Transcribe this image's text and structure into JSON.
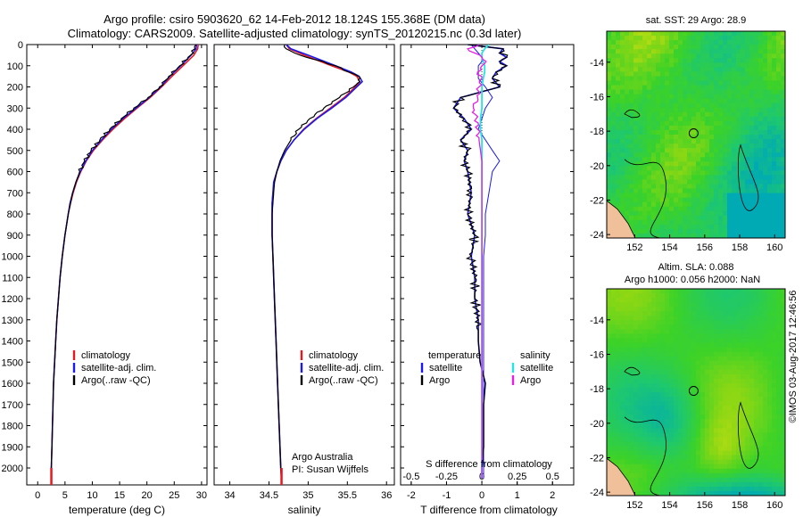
{
  "title": {
    "line1": "Argo profile: csiro 5903620_62 14-Feb-2012 18.124S 155.368E (DM data)",
    "line2": "Climatology: CARS2009. Satellite-adjusted climatology: synTS_20120215.nc (0.3d later)"
  },
  "footer": {
    "stamp": "©IMOS 03-Aug-2017 12:46:56"
  },
  "colors": {
    "climatology": "#e8161d",
    "satellite": "#1a1aee",
    "argo": "#000000",
    "salinity_sat": "#22e6e6",
    "salinity_argo": "#e61ee6",
    "land": "#f0c09a"
  },
  "chart_data": [
    {
      "id": "temperature",
      "type": "line",
      "xlabel": "temperature (deg C)",
      "xlim": [
        -2,
        31
      ],
      "xticks": [
        "0",
        "5",
        "10",
        "15",
        "20",
        "25",
        "30"
      ],
      "ylim": [
        0,
        2080
      ],
      "yticks": [
        "0",
        "100",
        "200",
        "300",
        "400",
        "500",
        "600",
        "700",
        "800",
        "900",
        "1000",
        "1100",
        "1200",
        "1300",
        "1400",
        "1500",
        "1600",
        "1700",
        "1800",
        "1900",
        "2000"
      ],
      "legend": [
        "climatology",
        "satellite-adj. clim.",
        "Argo(..raw -QC)"
      ],
      "depth": [
        0,
        20,
        50,
        100,
        150,
        200,
        250,
        300,
        350,
        400,
        450,
        500,
        550,
        600,
        650,
        700,
        750,
        800,
        900,
        1000,
        1100,
        1200,
        1300,
        1400,
        1500,
        1600,
        1700,
        1800,
        1900,
        2000,
        2050
      ],
      "series": [
        {
          "name": "climatology",
          "values": [
            29.4,
            29.3,
            28.6,
            26.6,
            24.6,
            22.7,
            20.6,
            18.2,
            15.9,
            13.8,
            11.9,
            10.2,
            8.9,
            7.9,
            7.1,
            6.5,
            6.0,
            5.6,
            5.0,
            4.5,
            4.1,
            3.8,
            3.5,
            3.3,
            3.1,
            2.9,
            2.8,
            2.7,
            2.6,
            2.5,
            2.5
          ]
        },
        {
          "name": "satellite",
          "values": [
            29.1,
            29.0,
            28.1,
            26.2,
            24.2,
            22.5,
            20.4,
            18.0,
            15.6,
            13.5,
            11.7,
            10.0,
            8.8,
            7.8,
            7.0,
            6.4,
            5.9,
            5.6,
            5.0,
            4.5,
            4.1,
            3.8,
            3.5,
            3.3,
            3.1,
            2.9,
            2.8,
            2.7,
            2.6,
            2.5,
            2.5
          ]
        },
        {
          "name": "argo",
          "values": [
            29.0,
            28.8,
            28.0,
            26.0,
            24.0,
            22.3,
            20.2,
            17.6,
            15.3,
            13.2,
            11.4,
            9.8,
            8.6,
            7.7,
            7.0,
            6.4,
            6.0,
            5.6,
            5.0,
            4.5,
            4.1,
            3.8,
            3.5,
            3.3,
            3.1,
            2.9,
            2.8,
            2.7,
            2.6,
            2.5,
            2.5
          ]
        }
      ]
    },
    {
      "id": "salinity",
      "type": "line",
      "xlabel": "salinity",
      "xlim": [
        33.8,
        36.1
      ],
      "xticks": [
        "34",
        "34.5",
        "35",
        "35.5",
        "36"
      ],
      "legend": [
        "climatology",
        "satellite-adj. clim.",
        "Argo(..raw -QC)"
      ],
      "depth": [
        0,
        20,
        50,
        100,
        130,
        150,
        175,
        200,
        250,
        300,
        350,
        400,
        450,
        500,
        550,
        600,
        650,
        700,
        750,
        800,
        900,
        1000,
        1200,
        1400,
        1600,
        1800,
        2000,
        2050
      ],
      "series": [
        {
          "name": "climatology",
          "values": [
            34.72,
            34.76,
            34.95,
            35.3,
            35.52,
            35.62,
            35.66,
            35.6,
            35.46,
            35.28,
            35.1,
            34.94,
            34.82,
            34.72,
            34.65,
            34.6,
            34.57,
            34.55,
            34.54,
            34.54,
            34.54,
            34.55,
            34.57,
            34.59,
            34.61,
            34.63,
            34.65,
            34.66
          ]
        },
        {
          "name": "satellite",
          "values": [
            34.72,
            34.78,
            35.0,
            35.35,
            35.55,
            35.65,
            35.69,
            35.62,
            35.48,
            35.3,
            35.11,
            34.95,
            34.82,
            34.72,
            34.65,
            34.6,
            34.56,
            34.55,
            34.54,
            34.54,
            34.54,
            34.55,
            34.57,
            34.59,
            34.61,
            34.63,
            34.65,
            34.66
          ]
        },
        {
          "name": "argo",
          "values": [
            34.7,
            34.72,
            34.9,
            35.35,
            35.52,
            35.64,
            35.66,
            35.58,
            35.4,
            35.2,
            35.02,
            34.88,
            34.78,
            34.7,
            34.64,
            34.6,
            34.57,
            34.56,
            34.55,
            34.54,
            34.54,
            34.55,
            34.57,
            34.59,
            34.61,
            34.63,
            34.65,
            34.66
          ]
        }
      ],
      "annotation": [
        "Argo Australia",
        "PI: Susan Wijffels"
      ]
    },
    {
      "id": "difference",
      "type": "line",
      "xlabel": "T difference from climatology",
      "xlabel2": "S difference from climatology",
      "xlim": [
        -2.3,
        2.6
      ],
      "xticks": [
        "-2",
        "-1",
        "0",
        "1",
        "2"
      ],
      "xticks2": [
        "-0.5",
        "-0.25",
        "0",
        "0.25",
        "0.5"
      ],
      "legend_temperature": [
        "temperature",
        "satellite",
        "Argo"
      ],
      "legend_salinity": [
        "salinity",
        "satellite",
        "Argo"
      ],
      "depth": [
        0,
        20,
        40,
        60,
        80,
        100,
        130,
        160,
        200,
        250,
        300,
        350,
        400,
        450,
        500,
        550,
        600,
        700,
        800,
        900,
        1000,
        1100,
        1200,
        1300,
        1400,
        1500,
        1600,
        1700,
        1800,
        1900,
        2000,
        2050
      ],
      "series": [
        {
          "name": "T satellite",
          "values": [
            -0.3,
            -0.2,
            -0.1,
            0.0,
            0.0,
            -0.1,
            -0.1,
            -0.1,
            0.1,
            0.3,
            0.1,
            0.0,
            -0.1,
            0.1,
            0.3,
            0.5,
            0.3,
            0.2,
            0.1,
            0.1,
            0.05,
            0.05,
            0.05,
            0.05,
            0.05,
            0.05,
            0.05,
            0.05,
            0.05,
            0.05,
            0.05,
            0.05
          ]
        },
        {
          "name": "T argo",
          "values": [
            -0.4,
            0.6,
            0.5,
            0.7,
            0.5,
            0.7,
            0.4,
            0.3,
            0.5,
            -0.6,
            -0.8,
            -0.5,
            -0.3,
            -0.6,
            -0.4,
            -0.5,
            -0.4,
            -0.3,
            -0.4,
            -0.2,
            -0.3,
            -0.2,
            -0.2,
            -0.1,
            -0.1,
            -0.05,
            0.1,
            0.05,
            0.05,
            0.05,
            0.0,
            0.0
          ]
        },
        {
          "name": "S satellite",
          "values": [
            0.05,
            0.02,
            0.0,
            0.0,
            0.01,
            0.02,
            0.02,
            0.01,
            0.0,
            0.0,
            0.0,
            -0.01,
            -0.01,
            0.0,
            0.0,
            0.0,
            0.0,
            0.0,
            0.0,
            0.0,
            0.0,
            0.0,
            0.0,
            0.0,
            0.0,
            0.0,
            0.0,
            0.0,
            0.0,
            0.0,
            0.0,
            0.0
          ]
        },
        {
          "name": "S argo",
          "values": [
            -0.02,
            -0.1,
            -0.05,
            0.0,
            0.03,
            0.0,
            -0.03,
            0.0,
            -0.02,
            -0.03,
            -0.06,
            -0.04,
            -0.03,
            -0.02,
            -0.01,
            0.0,
            0.0,
            0.0,
            0.0,
            0.0,
            0.0,
            0.0,
            0.0,
            0.0,
            0.0,
            0.0,
            0.0,
            0.0,
            0.0,
            0.0,
            0.0,
            0.0
          ]
        }
      ]
    }
  ],
  "maps": [
    {
      "id": "sst-map",
      "title": "sat. SST: 29 Argo: 28.9",
      "xticks": [
        "152",
        "154",
        "156",
        "158",
        "160"
      ],
      "yticks": [
        "-14",
        "-16",
        "-18",
        "-20",
        "-22",
        "-24"
      ],
      "float_lon": 155.368,
      "float_lat": -18.124
    },
    {
      "id": "sla-map",
      "title": "Altim. SLA: 0.088",
      "subtitle": "Argo h1000: 0.056 h2000: NaN",
      "xticks": [
        "152",
        "154",
        "156",
        "158",
        "160"
      ],
      "yticks": [
        "-14",
        "-16",
        "-18",
        "-20",
        "-22",
        "-24"
      ],
      "float_lon": 155.368,
      "float_lat": -18.124
    }
  ]
}
